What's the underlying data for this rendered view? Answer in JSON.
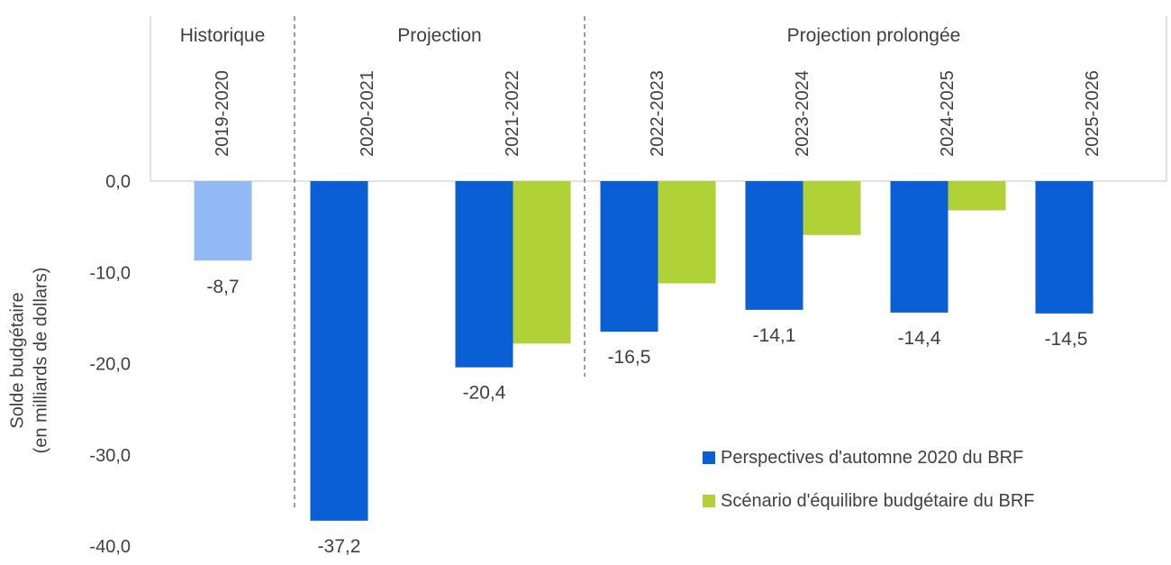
{
  "chart_data": {
    "type": "bar",
    "ylabel_lines": [
      "Solde budgétaire",
      "(en milliards de dollars)"
    ],
    "ylim": [
      -40,
      0
    ],
    "yticks": [
      "0,0",
      "-10,0",
      "-20,0",
      "-30,0",
      "-40,0"
    ],
    "ytick_values": [
      0,
      -10,
      -20,
      -30,
      -40
    ],
    "periods": [
      {
        "label": "Historique",
        "categories": [
          "2019-2020"
        ]
      },
      {
        "label": "Projection",
        "categories": [
          "2020-2021",
          "2021-2022"
        ]
      },
      {
        "label": "Projection prolongée",
        "categories": [
          "2022-2023",
          "2023-2024",
          "2024-2025",
          "2025-2026"
        ]
      }
    ],
    "categories": [
      "2019-2020",
      "2020-2021",
      "2021-2022",
      "2022-2023",
      "2023-2024",
      "2024-2025",
      "2025-2026"
    ],
    "historical_value": -8.7,
    "historical_label": "-8,7",
    "series": [
      {
        "name": "Perspectives d'automne 2020 du BRF",
        "color": "#0a5fd4",
        "values": [
          null,
          -37.2,
          -20.4,
          -16.5,
          -14.1,
          -14.4,
          -14.5
        ],
        "labels": [
          "",
          "-37,2",
          "-20,4",
          "-16,5",
          "-14,1",
          "-14,4",
          "-14,5"
        ]
      },
      {
        "name": "Scénario d'équilibre budgétaire du BRF",
        "color": "#b0d236",
        "values": [
          null,
          null,
          -17.8,
          -11.2,
          -5.9,
          -3.2,
          null
        ]
      }
    ],
    "historical_color": "#93b9f5",
    "grid": false,
    "legend_position": "bottom-right"
  }
}
